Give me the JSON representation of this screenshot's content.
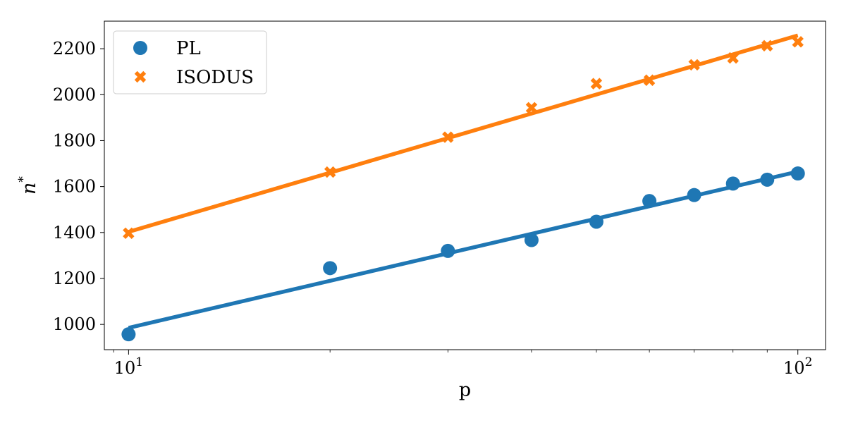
{
  "chart_data": {
    "type": "scatter",
    "xscale": "log",
    "xlabel": "p",
    "ylabel": "n",
    "ylabel_sup": "*",
    "xlim": [
      9.2,
      110
    ],
    "ylim": [
      890,
      2320
    ],
    "xticks": [
      {
        "value": 10,
        "base": "10",
        "exp": "1"
      },
      {
        "value": 100,
        "base": "10",
        "exp": "2"
      }
    ],
    "yticks": [
      1000,
      1200,
      1400,
      1600,
      1800,
      2000,
      2200
    ],
    "legend_position": "top-left",
    "series": [
      {
        "name": "PL",
        "color": "#1f77b4",
        "marker": "circle",
        "x": [
          10,
          20,
          30,
          40,
          50,
          60,
          70,
          80,
          90,
          100
        ],
        "y": [
          957,
          1245,
          1320,
          1367,
          1447,
          1537,
          1563,
          1613,
          1630,
          1657
        ],
        "fit": {
          "x": [
            10,
            100
          ],
          "y": [
            985,
            1665
          ]
        }
      },
      {
        "name": "ISODUS",
        "color": "#ff7f0e",
        "marker": "x",
        "x": [
          10,
          20,
          30,
          40,
          50,
          60,
          70,
          80,
          90,
          100
        ],
        "y": [
          1397,
          1663,
          1815,
          1943,
          2048,
          2063,
          2130,
          2160,
          2213,
          2230
        ],
        "fit": {
          "x": [
            10,
            100
          ],
          "y": [
            1403,
            2258
          ]
        }
      }
    ]
  }
}
